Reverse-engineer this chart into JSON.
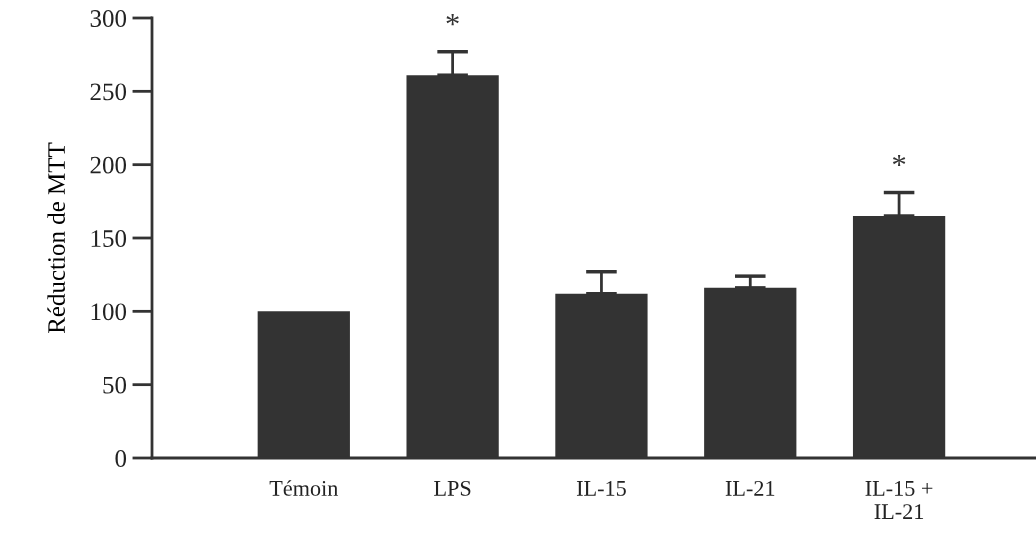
{
  "chart_data": {
    "type": "bar",
    "ylabel": "Réduction de MTT",
    "categories": [
      "Témoin",
      "LPS",
      "IL-15",
      "IL-21",
      "IL-15 +\nIL-21"
    ],
    "values": [
      100,
      261,
      112,
      116,
      165
    ],
    "errors": [
      null,
      [
        261,
        277
      ],
      [
        112,
        127
      ],
      [
        116,
        124
      ],
      [
        165,
        181
      ]
    ],
    "color": "#333333",
    "ylim": [
      0,
      300
    ],
    "yticks": [
      0,
      50,
      100,
      150,
      200,
      250,
      300
    ],
    "grid": false,
    "annotations": [
      {
        "text": "*",
        "x": "LPS",
        "y": 277
      },
      {
        "text": "*",
        "x": "IL-15 +\nIL-21",
        "y": 181
      }
    ]
  }
}
